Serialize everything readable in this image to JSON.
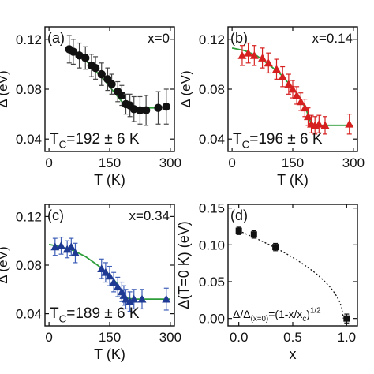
{
  "chart_data": [
    {
      "panel": "(a)",
      "type": "scatter",
      "composition": "x=0",
      "tc_label": "T_C=192 ± 6 K",
      "xlabel": "T (K)",
      "ylabel": "Δ (eV)",
      "xlim": [
        -10,
        310
      ],
      "ylim": [
        0.03,
        0.13
      ],
      "xticks": [
        "0",
        "150",
        "300"
      ],
      "yticks": [
        "0.04",
        "0.08",
        "0.12"
      ],
      "marker": "circle",
      "marker_color": "#111111",
      "errbar_color": "#444444",
      "fit_color": "#2e9e3a",
      "fit": {
        "x": [
          48,
          60,
          80,
          100,
          120,
          140,
          160,
          180,
          192,
          210,
          240,
          260
        ],
        "y": [
          0.113,
          0.111,
          0.106,
          0.1,
          0.093,
          0.086,
          0.078,
          0.07,
          0.066,
          0.065,
          0.065,
          0.065
        ]
      },
      "points": [
        {
          "x": 50,
          "y": 0.112,
          "err": 0.011
        },
        {
          "x": 60,
          "y": 0.11,
          "err": 0.01
        },
        {
          "x": 75,
          "y": 0.107,
          "err": 0.01
        },
        {
          "x": 90,
          "y": 0.105,
          "err": 0.009
        },
        {
          "x": 105,
          "y": 0.099,
          "err": 0.009
        },
        {
          "x": 115,
          "y": 0.097,
          "err": 0.009
        },
        {
          "x": 130,
          "y": 0.092,
          "err": 0.009
        },
        {
          "x": 145,
          "y": 0.088,
          "err": 0.009
        },
        {
          "x": 155,
          "y": 0.084,
          "err": 0.008
        },
        {
          "x": 170,
          "y": 0.078,
          "err": 0.008
        },
        {
          "x": 180,
          "y": 0.075,
          "err": 0.008
        },
        {
          "x": 190,
          "y": 0.068,
          "err": 0.008
        },
        {
          "x": 200,
          "y": 0.067,
          "err": 0.009
        },
        {
          "x": 210,
          "y": 0.064,
          "err": 0.01
        },
        {
          "x": 225,
          "y": 0.063,
          "err": 0.011
        },
        {
          "x": 240,
          "y": 0.063,
          "err": 0.012
        },
        {
          "x": 270,
          "y": 0.065,
          "err": 0.013
        },
        {
          "x": 290,
          "y": 0.066,
          "err": 0.014
        }
      ]
    },
    {
      "panel": "(b)",
      "type": "scatter",
      "composition": "x=0.14",
      "tc_label": "T_C=196 ± 6 K",
      "xlabel": "T (K)",
      "ylabel": "Δ (eV)",
      "xlim": [
        -10,
        310
      ],
      "ylim": [
        0.03,
        0.13
      ],
      "xticks": [
        "0",
        "150",
        "300"
      ],
      "yticks": [
        "0.04",
        "0.08",
        "0.12"
      ],
      "marker": "triangle",
      "marker_color": "#d62020",
      "errbar_color": "#d62020",
      "fit_color": "#2e9e3a",
      "fit": {
        "x": [
          0,
          30,
          60,
          90,
          120,
          150,
          170,
          185,
          196,
          220,
          260,
          300
        ],
        "y": [
          0.113,
          0.111,
          0.107,
          0.1,
          0.092,
          0.081,
          0.072,
          0.062,
          0.052,
          0.051,
          0.051,
          0.051
        ]
      },
      "points": [
        {
          "x": 25,
          "y": 0.107,
          "err": 0.008
        },
        {
          "x": 40,
          "y": 0.109,
          "err": 0.008
        },
        {
          "x": 55,
          "y": 0.107,
          "err": 0.008
        },
        {
          "x": 75,
          "y": 0.105,
          "err": 0.008
        },
        {
          "x": 90,
          "y": 0.101,
          "err": 0.008
        },
        {
          "x": 110,
          "y": 0.096,
          "err": 0.008
        },
        {
          "x": 125,
          "y": 0.09,
          "err": 0.008
        },
        {
          "x": 140,
          "y": 0.084,
          "err": 0.008
        },
        {
          "x": 150,
          "y": 0.08,
          "err": 0.007
        },
        {
          "x": 160,
          "y": 0.075,
          "err": 0.007
        },
        {
          "x": 170,
          "y": 0.07,
          "err": 0.007
        },
        {
          "x": 180,
          "y": 0.065,
          "err": 0.007
        },
        {
          "x": 188,
          "y": 0.058,
          "err": 0.007
        },
        {
          "x": 196,
          "y": 0.052,
          "err": 0.007
        },
        {
          "x": 205,
          "y": 0.051,
          "err": 0.007
        },
        {
          "x": 215,
          "y": 0.052,
          "err": 0.007
        },
        {
          "x": 230,
          "y": 0.051,
          "err": 0.007
        },
        {
          "x": 290,
          "y": 0.052,
          "err": 0.008
        }
      ]
    },
    {
      "panel": "(c)",
      "type": "scatter",
      "composition": "x=0.34",
      "tc_label": "T_C=189 ± 6 K",
      "xlabel": "T (K)",
      "ylabel": "Δ (eV)",
      "xlim": [
        -10,
        310
      ],
      "ylim": [
        0.03,
        0.13
      ],
      "xticks": [
        "0",
        "150",
        "300"
      ],
      "yticks": [
        "0.04",
        "0.08",
        "0.12"
      ],
      "marker": "triangle",
      "marker_color": "#1f3a93",
      "errbar_color": "#3f5fb8",
      "fit_color": "#2e9e3a",
      "fit": {
        "x": [
          0,
          30,
          60,
          90,
          120,
          150,
          170,
          189,
          210,
          260,
          300
        ],
        "y": [
          0.097,
          0.095,
          0.092,
          0.087,
          0.08,
          0.072,
          0.064,
          0.053,
          0.052,
          0.052,
          0.052
        ]
      },
      "points": [
        {
          "x": 15,
          "y": 0.095,
          "err": 0.007
        },
        {
          "x": 30,
          "y": 0.096,
          "err": 0.007
        },
        {
          "x": 45,
          "y": 0.093,
          "err": 0.007
        },
        {
          "x": 55,
          "y": 0.095,
          "err": 0.007
        },
        {
          "x": 65,
          "y": 0.09,
          "err": 0.008
        },
        {
          "x": 130,
          "y": 0.077,
          "err": 0.008
        },
        {
          "x": 140,
          "y": 0.074,
          "err": 0.008
        },
        {
          "x": 150,
          "y": 0.071,
          "err": 0.008
        },
        {
          "x": 160,
          "y": 0.066,
          "err": 0.008
        },
        {
          "x": 170,
          "y": 0.062,
          "err": 0.008
        },
        {
          "x": 180,
          "y": 0.058,
          "err": 0.008
        },
        {
          "x": 185,
          "y": 0.055,
          "err": 0.008
        },
        {
          "x": 190,
          "y": 0.052,
          "err": 0.008
        },
        {
          "x": 200,
          "y": 0.05,
          "err": 0.008
        },
        {
          "x": 210,
          "y": 0.052,
          "err": 0.008
        },
        {
          "x": 230,
          "y": 0.052,
          "err": 0.008
        },
        {
          "x": 290,
          "y": 0.052,
          "err": 0.009
        }
      ]
    },
    {
      "panel": "(d)",
      "type": "scatter",
      "xlabel": "x",
      "ylabel": "Δ(T=0 K) (eV)",
      "xlim": [
        -0.1,
        1.1
      ],
      "ylim": [
        -0.01,
        0.155
      ],
      "xticks": [
        "0.0",
        "0.5",
        "1.0"
      ],
      "yticks": [
        "0.00",
        "0.05",
        "0.10",
        "0.15"
      ],
      "annotation": "Δ/Δ_(x=0)=(1-x/x_c)^1/2",
      "marker": "square",
      "marker_color": "#111111",
      "points": [
        {
          "x": 0.0,
          "y": 0.119,
          "err": 0.005
        },
        {
          "x": 0.14,
          "y": 0.114,
          "err": 0.005
        },
        {
          "x": 0.34,
          "y": 0.097,
          "err": 0.005
        },
        {
          "x": 1.0,
          "y": 0.0,
          "err": 0.006
        }
      ],
      "fit": {
        "type": "sqrt",
        "a": 0.119,
        "xc": 0.97
      }
    }
  ]
}
